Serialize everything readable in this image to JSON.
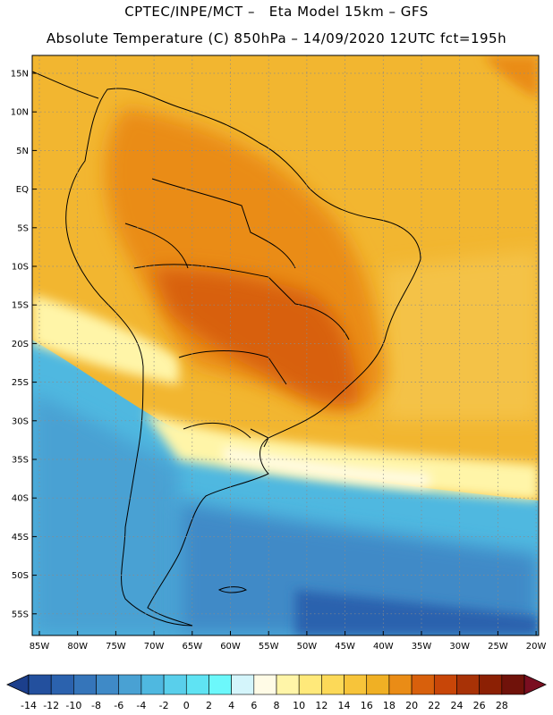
{
  "header": {
    "line1": "CPTEC/INPE/MCT –   Eta Model 15km – GFS",
    "line2": "Absolute Temperature (C) 850hPa – 14/09/2020 12UTC fct=195h"
  },
  "map": {
    "lat_labels": [
      "15N",
      "10N",
      "5N",
      "EQ",
      "5S",
      "10S",
      "15S",
      "20S",
      "25S",
      "30S",
      "35S",
      "40S",
      "45S",
      "50S",
      "55S"
    ],
    "lon_labels": [
      "85W",
      "80W",
      "75W",
      "70W",
      "65W",
      "60W",
      "55W",
      "50W",
      "45W",
      "40W",
      "35W",
      "30W",
      "25W",
      "20W"
    ]
  },
  "legend": {
    "labels": [
      "-14",
      "-12",
      "-10",
      "-8",
      "-6",
      "-4",
      "-2",
      "0",
      "2",
      "4",
      "6",
      "8",
      "10",
      "12",
      "14",
      "16",
      "18",
      "20",
      "22",
      "24",
      "26",
      "28"
    ],
    "colors": [
      "#1c3f8c",
      "#23509e",
      "#2b62ae",
      "#3575ba",
      "#3f8ac7",
      "#49a1d3",
      "#4fb8e0",
      "#59cfeb",
      "#5fe3f3",
      "#6cf8fb",
      "#d4f5fb",
      "#fffbe6",
      "#fff5a8",
      "#ffe97a",
      "#fcd958",
      "#f7c43a",
      "#f0b024",
      "#ea8c16",
      "#d8600c",
      "#c84608",
      "#a83206",
      "#8c2004",
      "#70120a",
      "#7a0e20"
    ]
  }
}
